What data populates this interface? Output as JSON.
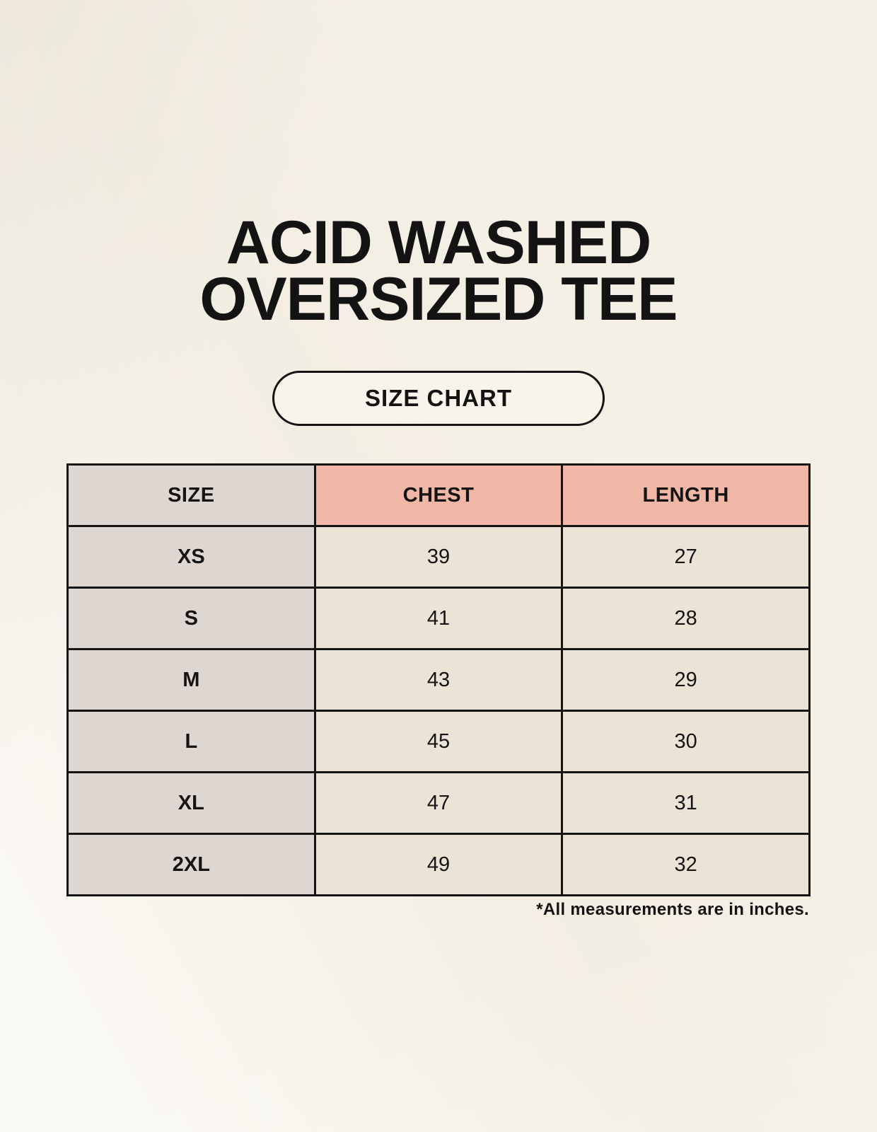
{
  "page": {
    "title_line1": "ACID WASHED",
    "title_line2": "OVERSIZED TEE",
    "size_chart_button_label": "SIZE CHART",
    "footnote": "*All measurements are in inches."
  },
  "chart_data": {
    "type": "table",
    "title": "ACID WASHED OVERSIZED TEE",
    "subtitle": "SIZE CHART",
    "columns": [
      "SIZE",
      "CHEST",
      "LENGTH"
    ],
    "rows": [
      [
        "XS",
        "39",
        "27"
      ],
      [
        "S",
        "41",
        "28"
      ],
      [
        "M",
        "43",
        "29"
      ],
      [
        "L",
        "45",
        "30"
      ],
      [
        "XL",
        "47",
        "31"
      ],
      [
        "2XL",
        "49",
        "32"
      ]
    ],
    "units_note": "*All measurements are in inches."
  },
  "colors": {
    "background": "#f8f4eb",
    "size_column_bg": "#ded6d0",
    "header_accent_bg": "#f0b7a6",
    "data_cell_bg": "#eae3d6",
    "border": "#141414",
    "text": "#131313"
  }
}
